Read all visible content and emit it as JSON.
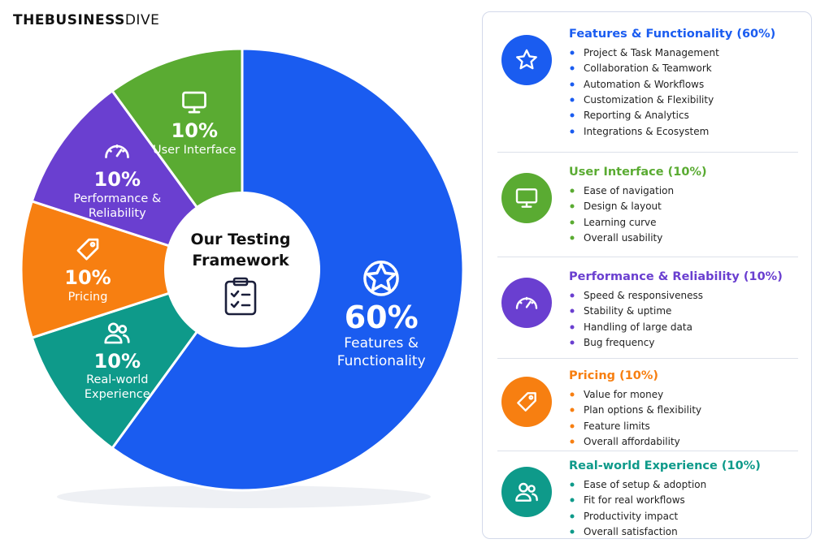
{
  "brand": {
    "bold": "THEBUSINESS",
    "light": "DIVE"
  },
  "chart_data": {
    "type": "pie",
    "title": "Our Testing Framework",
    "categories": [
      "Features & Functionality",
      "Real-world Experience",
      "Pricing",
      "Performance & Reliability",
      "User Interface"
    ],
    "values": [
      60,
      10,
      10,
      10,
      10
    ],
    "value_labels": [
      "60%",
      "10%",
      "10%",
      "10%",
      "10%"
    ],
    "colors": [
      "#1a5cf0",
      "#0e9a8a",
      "#f77f11",
      "#6a3fd0",
      "#5aab32"
    ]
  },
  "panel": {
    "sections": [
      {
        "heading": "Features & Functionality (60%)",
        "color": "#1a5cf0",
        "items": [
          "Project & Task Management",
          "Collaboration & Teamwork",
          "Automation & Workflows",
          "Customization & Flexibility",
          "Reporting & Analytics",
          "Integrations & Ecosystem"
        ]
      },
      {
        "heading": "User Interface (10%)",
        "color": "#5aab32",
        "items": [
          "Ease of navigation",
          "Design & layout",
          "Learning curve",
          "Overall usability"
        ]
      },
      {
        "heading": "Performance & Reliability (10%)",
        "color": "#6a3fd0",
        "items": [
          "Speed & responsiveness",
          "Stability & uptime",
          "Handling of large data",
          "Bug frequency"
        ]
      },
      {
        "heading": "Pricing (10%)",
        "color": "#f77f11",
        "items": [
          "Value for money",
          "Plan options & flexibility",
          "Feature limits",
          "Overall affordability"
        ]
      },
      {
        "heading": "Real-world Experience (10%)",
        "color": "#0e9a8a",
        "items": [
          "Ease of setup & adoption",
          "Fit for real workflows",
          "Productivity impact",
          "Overall satisfaction"
        ]
      }
    ]
  }
}
